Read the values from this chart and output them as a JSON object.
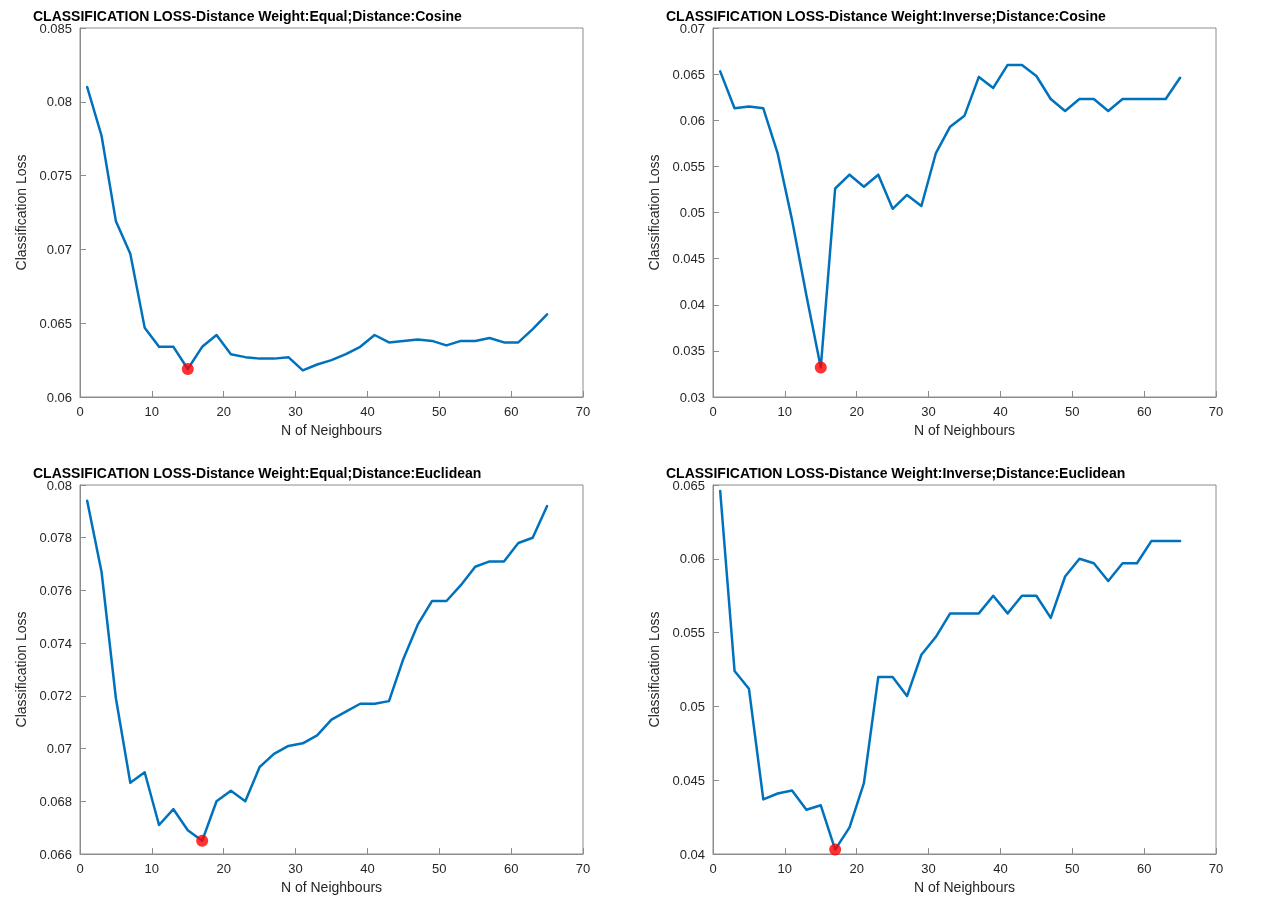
{
  "chart_data": [
    {
      "type": "line",
      "title": "CLASSIFICATION LOSS-Distance Weight:Equal;Distance:Cosine",
      "xlabel": "N of Neighbours",
      "ylabel": "Classification Loss",
      "x": [
        1,
        3,
        5,
        7,
        9,
        11,
        13,
        15,
        17,
        19,
        21,
        23,
        25,
        27,
        29,
        31,
        33,
        35,
        37,
        39,
        41,
        43,
        45,
        47,
        49,
        51,
        53,
        55,
        57,
        59,
        61,
        63,
        65
      ],
      "series": [
        {
          "color": "#0072bd",
          "values": [
            0.081,
            0.0777,
            0.0719,
            0.0697,
            0.0647,
            0.0634,
            0.0634,
            0.0619,
            0.0634,
            0.0642,
            0.0629,
            0.0627,
            0.0626,
            0.0626,
            0.0627,
            0.0618,
            0.0622,
            0.0625,
            0.0629,
            0.0634,
            0.0642,
            0.0637,
            0.0638,
            0.0639,
            0.0638,
            0.0635,
            0.0638,
            0.0638,
            0.064,
            0.0637,
            0.0637,
            0.0646,
            0.0656
          ]
        },
        {
          "type": "scatter",
          "color": "#ff0000",
          "marker": "circle",
          "values": [
            null,
            null,
            null,
            null,
            null,
            null,
            null,
            0.0619,
            null,
            null,
            null,
            null,
            null,
            null,
            null,
            null,
            null,
            null,
            null,
            null,
            null,
            null,
            null,
            null,
            null,
            null,
            null,
            null,
            null,
            null,
            null,
            null,
            null
          ]
        }
      ],
      "xlim": [
        0,
        70
      ],
      "xticks": [
        0,
        10,
        20,
        30,
        40,
        50,
        60,
        70
      ],
      "ylim": [
        0.06,
        0.085
      ],
      "yticks": [
        0.06,
        0.065,
        0.07,
        0.075,
        0.08,
        0.085
      ],
      "grid": false,
      "marker": "none",
      "line_style": "solid"
    },
    {
      "type": "line",
      "title": "CLASSIFICATION LOSS-Distance Weight:Inverse;Distance:Cosine",
      "xlabel": "N of Neighbours",
      "ylabel": "Classification Loss",
      "x": [
        1,
        3,
        5,
        7,
        9,
        11,
        13,
        15,
        17,
        19,
        21,
        23,
        25,
        27,
        29,
        31,
        33,
        35,
        37,
        39,
        41,
        43,
        45,
        47,
        49,
        51,
        53,
        55,
        57,
        59,
        61,
        63,
        65
      ],
      "series": [
        {
          "color": "#0072bd",
          "values": [
            0.0653,
            0.0613,
            0.0615,
            0.0613,
            0.0564,
            0.0492,
            0.041,
            0.0332,
            0.0526,
            0.0541,
            0.0528,
            0.0541,
            0.0504,
            0.0519,
            0.0507,
            0.0564,
            0.0593,
            0.0605,
            0.0647,
            0.0635,
            0.066,
            0.066,
            0.0648,
            0.0623,
            0.061,
            0.0623,
            0.0623,
            0.061,
            0.0623,
            0.0623,
            0.0623,
            0.0623,
            0.0646
          ]
        },
        {
          "type": "scatter",
          "color": "#ff0000",
          "marker": "circle",
          "values": [
            null,
            null,
            null,
            null,
            null,
            null,
            null,
            0.0332,
            null,
            null,
            null,
            null,
            null,
            null,
            null,
            null,
            null,
            null,
            null,
            null,
            null,
            null,
            null,
            null,
            null,
            null,
            null,
            null,
            null,
            null,
            null,
            null,
            null
          ]
        }
      ],
      "xlim": [
        0,
        70
      ],
      "xticks": [
        0,
        10,
        20,
        30,
        40,
        50,
        60,
        70
      ],
      "ylim": [
        0.03,
        0.07
      ],
      "yticks": [
        0.03,
        0.035,
        0.04,
        0.045,
        0.05,
        0.055,
        0.06,
        0.065,
        0.07
      ],
      "grid": false,
      "marker": "none",
      "line_style": "solid"
    },
    {
      "type": "line",
      "title": "CLASSIFICATION LOSS-Distance Weight:Equal;Distance:Euclidean",
      "xlabel": "N of Neighbours",
      "ylabel": "Classification Loss",
      "x": [
        1,
        3,
        5,
        7,
        9,
        11,
        13,
        15,
        17,
        19,
        21,
        23,
        25,
        27,
        29,
        31,
        33,
        35,
        37,
        39,
        41,
        43,
        45,
        47,
        49,
        51,
        53,
        55,
        57,
        59,
        61,
        63,
        65
      ],
      "series": [
        {
          "color": "#0072bd",
          "values": [
            0.0794,
            0.0767,
            0.0719,
            0.0687,
            0.0691,
            0.0671,
            0.0677,
            0.0669,
            0.0665,
            0.068,
            0.0684,
            0.068,
            0.0693,
            0.0698,
            0.0701,
            0.0702,
            0.0705,
            0.0711,
            0.0714,
            0.0717,
            0.0717,
            0.0718,
            0.0734,
            0.0747,
            0.0756,
            0.0756,
            0.0762,
            0.0769,
            0.0771,
            0.0771,
            0.0778,
            0.078,
            0.0792
          ]
        },
        {
          "type": "scatter",
          "color": "#ff0000",
          "marker": "circle",
          "values": [
            null,
            null,
            null,
            null,
            null,
            null,
            null,
            null,
            0.0665,
            null,
            null,
            null,
            null,
            null,
            null,
            null,
            null,
            null,
            null,
            null,
            null,
            null,
            null,
            null,
            null,
            null,
            null,
            null,
            null,
            null,
            null,
            null,
            null
          ]
        }
      ],
      "xlim": [
        0,
        70
      ],
      "xticks": [
        0,
        10,
        20,
        30,
        40,
        50,
        60,
        70
      ],
      "ylim": [
        0.066,
        0.08
      ],
      "yticks": [
        0.066,
        0.068,
        0.07,
        0.072,
        0.074,
        0.076,
        0.078,
        0.08
      ],
      "grid": false,
      "marker": "none",
      "line_style": "solid"
    },
    {
      "type": "line",
      "title": "CLASSIFICATION LOSS-Distance Weight:Inverse;Distance:Euclidean",
      "xlabel": "N of Neighbours",
      "ylabel": "Classification Loss",
      "x": [
        1,
        3,
        5,
        7,
        9,
        11,
        13,
        15,
        17,
        19,
        21,
        23,
        25,
        27,
        29,
        31,
        33,
        35,
        37,
        39,
        41,
        43,
        45,
        47,
        49,
        51,
        53,
        55,
        57,
        59,
        61,
        63,
        65
      ],
      "series": [
        {
          "color": "#0072bd",
          "values": [
            0.0646,
            0.0524,
            0.0512,
            0.0437,
            0.0441,
            0.0443,
            0.043,
            0.0433,
            0.0403,
            0.0418,
            0.0448,
            0.052,
            0.052,
            0.0507,
            0.0535,
            0.0547,
            0.0563,
            0.0563,
            0.0563,
            0.0575,
            0.0563,
            0.0575,
            0.0575,
            0.056,
            0.0588,
            0.06,
            0.0597,
            0.0585,
            0.0597,
            0.0597,
            0.0612,
            0.0612,
            0.0612
          ]
        },
        {
          "type": "scatter",
          "color": "#ff0000",
          "marker": "circle",
          "values": [
            null,
            null,
            null,
            null,
            null,
            null,
            null,
            null,
            0.0403,
            null,
            null,
            null,
            null,
            null,
            null,
            null,
            null,
            null,
            null,
            null,
            null,
            null,
            null,
            null,
            null,
            null,
            null,
            null,
            null,
            null,
            null,
            null,
            null
          ]
        }
      ],
      "xlim": [
        0,
        70
      ],
      "xticks": [
        0,
        10,
        20,
        30,
        40,
        50,
        60,
        70
      ],
      "ylim": [
        0.04,
        0.065
      ],
      "yticks": [
        0.04,
        0.045,
        0.05,
        0.055,
        0.06,
        0.065
      ],
      "grid": false,
      "marker": "none",
      "line_style": "solid"
    }
  ]
}
